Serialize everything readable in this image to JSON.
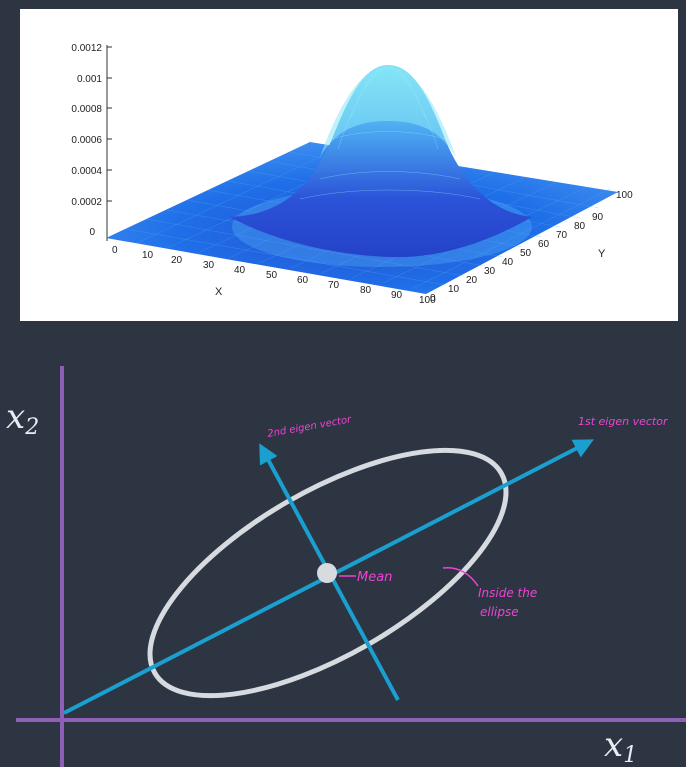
{
  "plot3d": {
    "z_ticks": [
      "0.0012",
      "0.001",
      "0.0008",
      "0.0006",
      "0.0004",
      "0.0002",
      "0"
    ],
    "x_ticks": [
      "0",
      "10",
      "20",
      "30",
      "40",
      "50",
      "60",
      "70",
      "80",
      "90",
      "100"
    ],
    "y_ticks": [
      "0",
      "10",
      "20",
      "30",
      "40",
      "50",
      "60",
      "70",
      "80",
      "90",
      "100"
    ],
    "x_label": "X",
    "y_label": "Y",
    "colors": {
      "surface": "#1e6fe8",
      "peak": "#6fd6f2"
    }
  },
  "diagram": {
    "x_axis_symbol": "x",
    "x_axis_sub": "1",
    "y_axis_symbol": "x",
    "y_axis_sub": "2",
    "first_eigen_label": "1st eigen vector",
    "second_eigen_label": "2nd eigen vector",
    "mean_label": "Mean",
    "inside_label_line1": "Inside the",
    "inside_label_line2": "ellipse",
    "colors": {
      "axis": "#8f5fb8",
      "eigen": "#1a9fcf",
      "ellipse": "#d7dbe0",
      "annotation": "#f042d6"
    }
  }
}
